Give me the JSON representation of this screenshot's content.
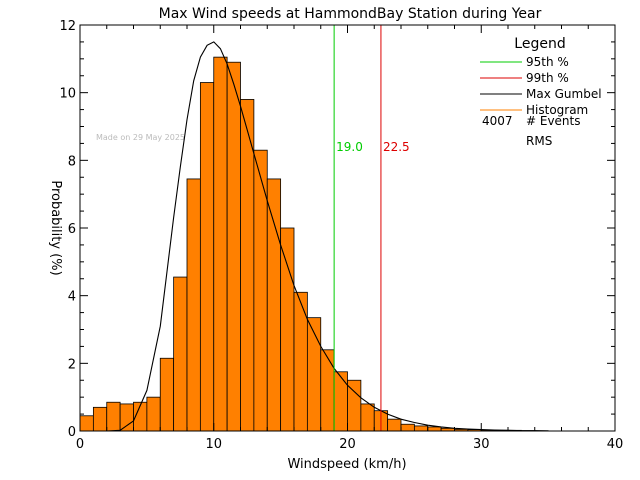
{
  "chart_data": {
    "type": "bar",
    "title": "Max Wind speeds at HammondBay Station during Year",
    "xlabel": "Windspeed (km/h)",
    "ylabel": "Probability (%)",
    "xlim": [
      0,
      40
    ],
    "ylim": [
      0,
      12
    ],
    "xticks": [
      0,
      10,
      20,
      30,
      40
    ],
    "yticks": [
      0,
      2,
      4,
      6,
      8,
      10,
      12
    ],
    "watermark": "Made on 29 May 2025",
    "bin_width": 1,
    "histogram": {
      "name": "Histogram",
      "color": "#FF8000",
      "bin_starts": [
        0,
        1,
        2,
        3,
        4,
        5,
        6,
        7,
        8,
        9,
        10,
        11,
        12,
        13,
        14,
        15,
        16,
        17,
        18,
        19,
        20,
        21,
        22,
        23,
        24,
        25,
        26,
        27,
        28,
        29,
        30,
        31,
        32,
        33,
        34
      ],
      "values": [
        0.45,
        0.7,
        0.85,
        0.8,
        0.85,
        1.0,
        2.15,
        4.55,
        7.45,
        10.3,
        11.05,
        10.9,
        9.8,
        8.3,
        7.45,
        6.0,
        4.1,
        3.35,
        2.4,
        1.75,
        1.5,
        0.8,
        0.6,
        0.35,
        0.2,
        0.15,
        0.12,
        0.08,
        0.05,
        0.04,
        0.03,
        0.02,
        0.02,
        0.01,
        0.01
      ]
    },
    "gumbel": {
      "name": "Max Gumbel",
      "color": "#000000",
      "x": [
        0,
        1,
        2,
        3,
        4,
        5,
        6,
        7,
        7.5,
        8,
        8.5,
        9,
        9.5,
        10,
        10.5,
        11,
        11.5,
        12,
        12.5,
        13,
        14,
        15,
        16,
        17,
        18,
        19,
        20,
        21,
        22,
        23,
        24,
        25,
        26,
        27,
        28,
        29,
        30,
        31,
        32,
        33,
        34,
        35
      ],
      "y": [
        0,
        0,
        0,
        0.02,
        0.3,
        1.2,
        3.1,
        6.3,
        7.8,
        9.2,
        10.35,
        11.05,
        11.4,
        11.5,
        11.3,
        10.85,
        10.25,
        9.6,
        8.9,
        8.2,
        6.8,
        5.5,
        4.3,
        3.3,
        2.5,
        1.85,
        1.35,
        0.98,
        0.7,
        0.5,
        0.35,
        0.25,
        0.17,
        0.12,
        0.08,
        0.06,
        0.04,
        0.03,
        0.02,
        0.01,
        0.01,
        0.0
      ]
    },
    "percentiles": [
      {
        "name": "95th %",
        "value": 19.0,
        "label": "19.0",
        "color": "#00CC00"
      },
      {
        "name": "99th %",
        "value": 22.5,
        "label": "22.5",
        "color": "#DD0000"
      }
    ],
    "legend": {
      "title": "Legend",
      "position": "top-right",
      "items": [
        {
          "label": "95th %",
          "color": "#00CC00"
        },
        {
          "label": "99th %",
          "color": "#DD0000"
        },
        {
          "label": "Max Gumbel",
          "color": "#000000"
        },
        {
          "label": "Histogram",
          "color": "#FF8000"
        }
      ],
      "events_count": "4007",
      "events_label": "# Events",
      "rms_label": "RMS"
    }
  }
}
